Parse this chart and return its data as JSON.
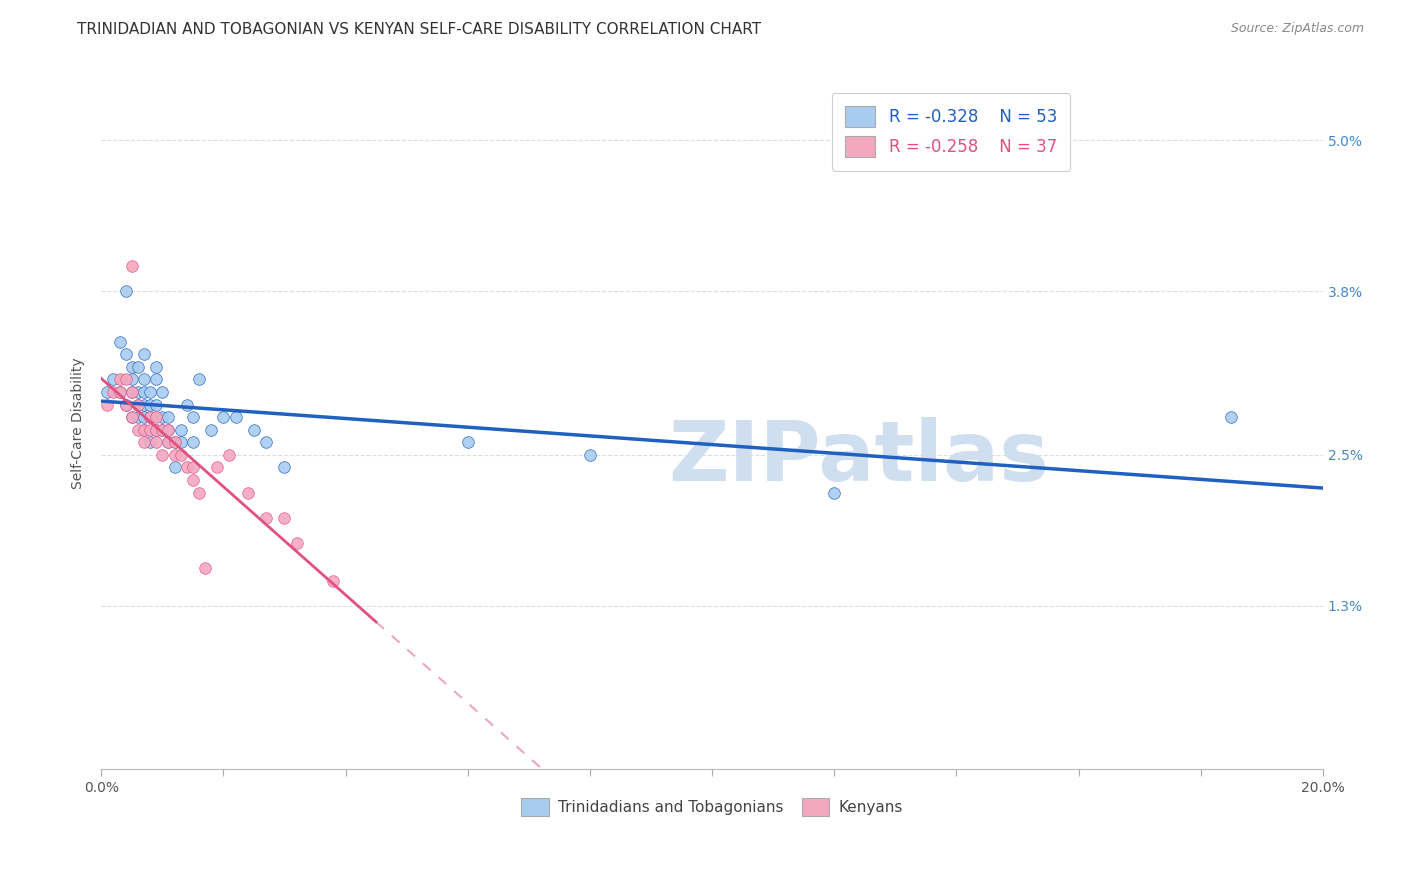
{
  "title": "TRINIDADIAN AND TOBAGONIAN VS KENYAN SELF-CARE DISABILITY CORRELATION CHART",
  "source": "Source: ZipAtlas.com",
  "ylabel": "Self-Care Disability",
  "xlim": [
    0.0,
    0.2
  ],
  "ylim": [
    0.0,
    0.055
  ],
  "xticks": [
    0.0,
    0.02,
    0.04,
    0.06,
    0.08,
    0.1,
    0.12,
    0.14,
    0.16,
    0.18,
    0.2
  ],
  "ytick_positions": [
    0.0,
    0.013,
    0.025,
    0.038,
    0.05
  ],
  "ytick_labels": [
    "",
    "1.3%",
    "2.5%",
    "3.8%",
    "5.0%"
  ],
  "blue_color": "#A8CCF0",
  "pink_color": "#F4A8C0",
  "blue_line_color": "#2060C0",
  "pink_line_color": "#E05080",
  "watermark": "ZIPatlas",
  "watermark_color": "#D0DFF0",
  "legend_R_blue": "-0.328",
  "legend_N_blue": "53",
  "legend_R_pink": "-0.258",
  "legend_N_pink": "37",
  "blue_scatter_x": [
    0.001,
    0.002,
    0.003,
    0.003,
    0.004,
    0.004,
    0.004,
    0.005,
    0.005,
    0.005,
    0.005,
    0.006,
    0.006,
    0.006,
    0.006,
    0.007,
    0.007,
    0.007,
    0.007,
    0.007,
    0.007,
    0.008,
    0.008,
    0.008,
    0.008,
    0.009,
    0.009,
    0.009,
    0.009,
    0.01,
    0.01,
    0.01,
    0.011,
    0.011,
    0.011,
    0.012,
    0.012,
    0.013,
    0.013,
    0.014,
    0.015,
    0.015,
    0.016,
    0.018,
    0.02,
    0.022,
    0.025,
    0.027,
    0.03,
    0.06,
    0.08,
    0.12,
    0.185
  ],
  "blue_scatter_y": [
    0.03,
    0.031,
    0.034,
    0.03,
    0.038,
    0.033,
    0.029,
    0.032,
    0.03,
    0.028,
    0.031,
    0.032,
    0.03,
    0.029,
    0.028,
    0.033,
    0.031,
    0.03,
    0.029,
    0.028,
    0.027,
    0.03,
    0.029,
    0.028,
    0.026,
    0.032,
    0.031,
    0.029,
    0.027,
    0.03,
    0.028,
    0.027,
    0.028,
    0.027,
    0.026,
    0.026,
    0.024,
    0.027,
    0.026,
    0.029,
    0.026,
    0.028,
    0.031,
    0.027,
    0.028,
    0.028,
    0.027,
    0.026,
    0.024,
    0.026,
    0.025,
    0.022,
    0.028
  ],
  "pink_scatter_x": [
    0.001,
    0.002,
    0.003,
    0.003,
    0.004,
    0.004,
    0.005,
    0.005,
    0.005,
    0.006,
    0.006,
    0.007,
    0.007,
    0.008,
    0.008,
    0.009,
    0.009,
    0.009,
    0.01,
    0.01,
    0.011,
    0.011,
    0.012,
    0.012,
    0.013,
    0.014,
    0.015,
    0.015,
    0.016,
    0.017,
    0.019,
    0.021,
    0.024,
    0.027,
    0.03,
    0.032,
    0.038
  ],
  "pink_scatter_y": [
    0.029,
    0.03,
    0.031,
    0.03,
    0.029,
    0.031,
    0.028,
    0.03,
    0.04,
    0.027,
    0.029,
    0.027,
    0.026,
    0.027,
    0.028,
    0.027,
    0.026,
    0.028,
    0.025,
    0.027,
    0.026,
    0.027,
    0.025,
    0.026,
    0.025,
    0.024,
    0.023,
    0.024,
    0.022,
    0.016,
    0.024,
    0.025,
    0.022,
    0.02,
    0.02,
    0.018,
    0.015
  ],
  "background_color": "#FFFFFF",
  "grid_color": "#DDDDDD",
  "right_axis_color": "#4488CC",
  "title_fontsize": 11,
  "axis_label_fontsize": 10,
  "tick_fontsize": 10,
  "blue_line_x_end": 0.2,
  "pink_line_x_end": 0.2,
  "pink_line_x_start": 0.0,
  "blue_line_x_start": 0.0
}
